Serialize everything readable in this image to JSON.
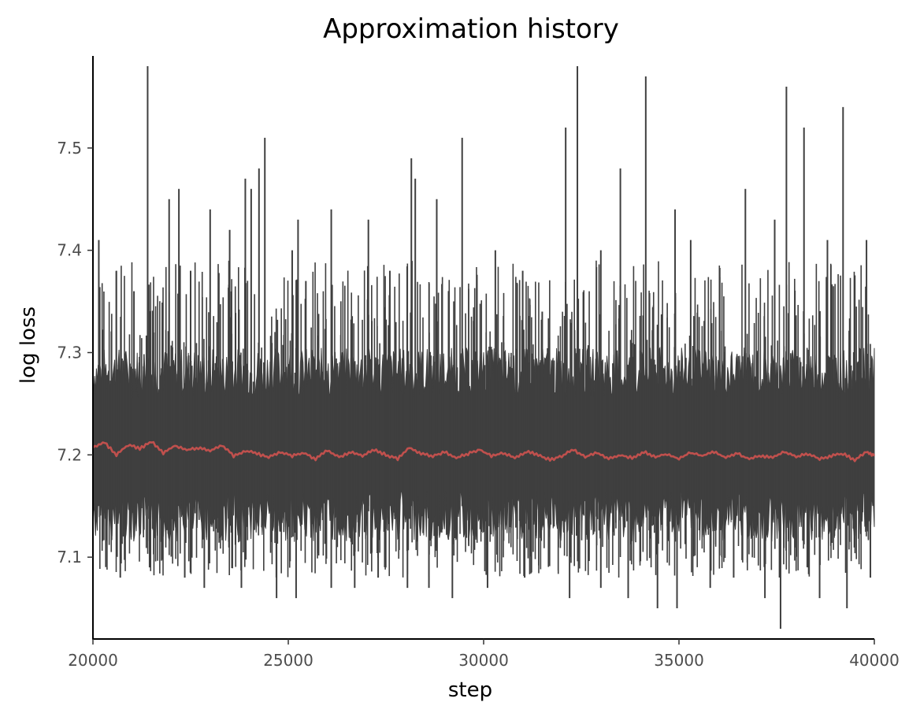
{
  "chart_data": {
    "type": "line",
    "title": "Approximation history",
    "xlabel": "step",
    "ylabel": "log loss",
    "xlim": [
      20000,
      40000
    ],
    "ylim": [
      7.02,
      7.59
    ],
    "x_ticks": [
      20000,
      25000,
      30000,
      35000,
      40000
    ],
    "y_ticks": [
      7.1,
      7.2,
      7.3,
      7.4,
      7.5
    ],
    "x_tick_labels": [
      "20000",
      "25000",
      "30000",
      "35000",
      "40000"
    ],
    "y_tick_labels": [
      "7.1",
      "7.2",
      "7.3",
      "7.4",
      "7.5"
    ],
    "grid": false,
    "legend": "none",
    "series": [
      {
        "color": "#3f3f3f",
        "band": {
          "low": 7.15,
          "high": 7.27
        },
        "spikes_high": [
          [
            20150,
            7.41
          ],
          [
            20600,
            7.38
          ],
          [
            21050,
            7.36
          ],
          [
            21400,
            7.58
          ],
          [
            21950,
            7.45
          ],
          [
            22200,
            7.46
          ],
          [
            22500,
            7.38
          ],
          [
            23000,
            7.44
          ],
          [
            23500,
            7.42
          ],
          [
            23900,
            7.47
          ],
          [
            24050,
            7.46
          ],
          [
            24250,
            7.48
          ],
          [
            24400,
            7.51
          ],
          [
            25100,
            7.4
          ],
          [
            25250,
            7.43
          ],
          [
            25450,
            7.37
          ],
          [
            26100,
            7.44
          ],
          [
            27050,
            7.43
          ],
          [
            27600,
            7.38
          ],
          [
            28150,
            7.49
          ],
          [
            28250,
            7.47
          ],
          [
            28800,
            7.45
          ],
          [
            29450,
            7.51
          ],
          [
            30300,
            7.4
          ],
          [
            31000,
            7.38
          ],
          [
            31500,
            7.34
          ],
          [
            32100,
            7.52
          ],
          [
            32400,
            7.58
          ],
          [
            33000,
            7.4
          ],
          [
            33500,
            7.48
          ],
          [
            34150,
            7.57
          ],
          [
            34900,
            7.44
          ],
          [
            35300,
            7.41
          ],
          [
            36700,
            7.46
          ],
          [
            37450,
            7.43
          ],
          [
            37750,
            7.56
          ],
          [
            38200,
            7.52
          ],
          [
            38800,
            7.41
          ],
          [
            39200,
            7.54
          ],
          [
            39800,
            7.41
          ]
        ],
        "spikes_low": [
          [
            20700,
            7.08
          ],
          [
            21450,
            7.09
          ],
          [
            22350,
            7.08
          ],
          [
            22850,
            7.07
          ],
          [
            23800,
            7.07
          ],
          [
            24700,
            7.06
          ],
          [
            25200,
            7.06
          ],
          [
            26100,
            7.07
          ],
          [
            26700,
            7.07
          ],
          [
            27300,
            7.08
          ],
          [
            28050,
            7.07
          ],
          [
            28600,
            7.07
          ],
          [
            29200,
            7.06
          ],
          [
            30100,
            7.07
          ],
          [
            31050,
            7.08
          ],
          [
            32200,
            7.06
          ],
          [
            33000,
            7.07
          ],
          [
            33700,
            7.06
          ],
          [
            34450,
            7.05
          ],
          [
            34950,
            7.05
          ],
          [
            35800,
            7.07
          ],
          [
            36400,
            7.08
          ],
          [
            37200,
            7.06
          ],
          [
            37600,
            7.03
          ],
          [
            38600,
            7.06
          ],
          [
            39300,
            7.05
          ],
          [
            39900,
            7.08
          ]
        ]
      },
      {
        "color": "#c0504d",
        "x": [
          20000,
          20300,
          20600,
          20900,
          21200,
          21500,
          21800,
          22100,
          22400,
          22700,
          23000,
          23300,
          23600,
          23900,
          24200,
          24500,
          24800,
          25100,
          25400,
          25700,
          26000,
          26300,
          26600,
          26900,
          27200,
          27500,
          27800,
          28100,
          28400,
          28700,
          29000,
          29300,
          29600,
          29900,
          30200,
          30500,
          30800,
          31100,
          31400,
          31700,
          32000,
          32300,
          32600,
          32900,
          33200,
          33500,
          33800,
          34100,
          34400,
          34700,
          35000,
          35300,
          35600,
          35900,
          36200,
          36500,
          36800,
          37100,
          37400,
          37700,
          38000,
          38300,
          38600,
          38900,
          39200,
          39500,
          39800,
          40000
        ],
        "y": [
          7.208,
          7.212,
          7.2,
          7.21,
          7.206,
          7.213,
          7.202,
          7.209,
          7.205,
          7.207,
          7.204,
          7.21,
          7.199,
          7.204,
          7.201,
          7.198,
          7.203,
          7.199,
          7.202,
          7.196,
          7.204,
          7.198,
          7.203,
          7.199,
          7.205,
          7.2,
          7.196,
          7.207,
          7.201,
          7.199,
          7.203,
          7.197,
          7.201,
          7.205,
          7.199,
          7.202,
          7.197,
          7.203,
          7.2,
          7.195,
          7.199,
          7.205,
          7.198,
          7.202,
          7.196,
          7.2,
          7.197,
          7.203,
          7.198,
          7.201,
          7.196,
          7.202,
          7.199,
          7.203,
          7.197,
          7.201,
          7.196,
          7.199,
          7.197,
          7.203,
          7.198,
          7.201,
          7.196,
          7.199,
          7.201,
          7.195,
          7.203,
          7.199
        ]
      }
    ]
  }
}
